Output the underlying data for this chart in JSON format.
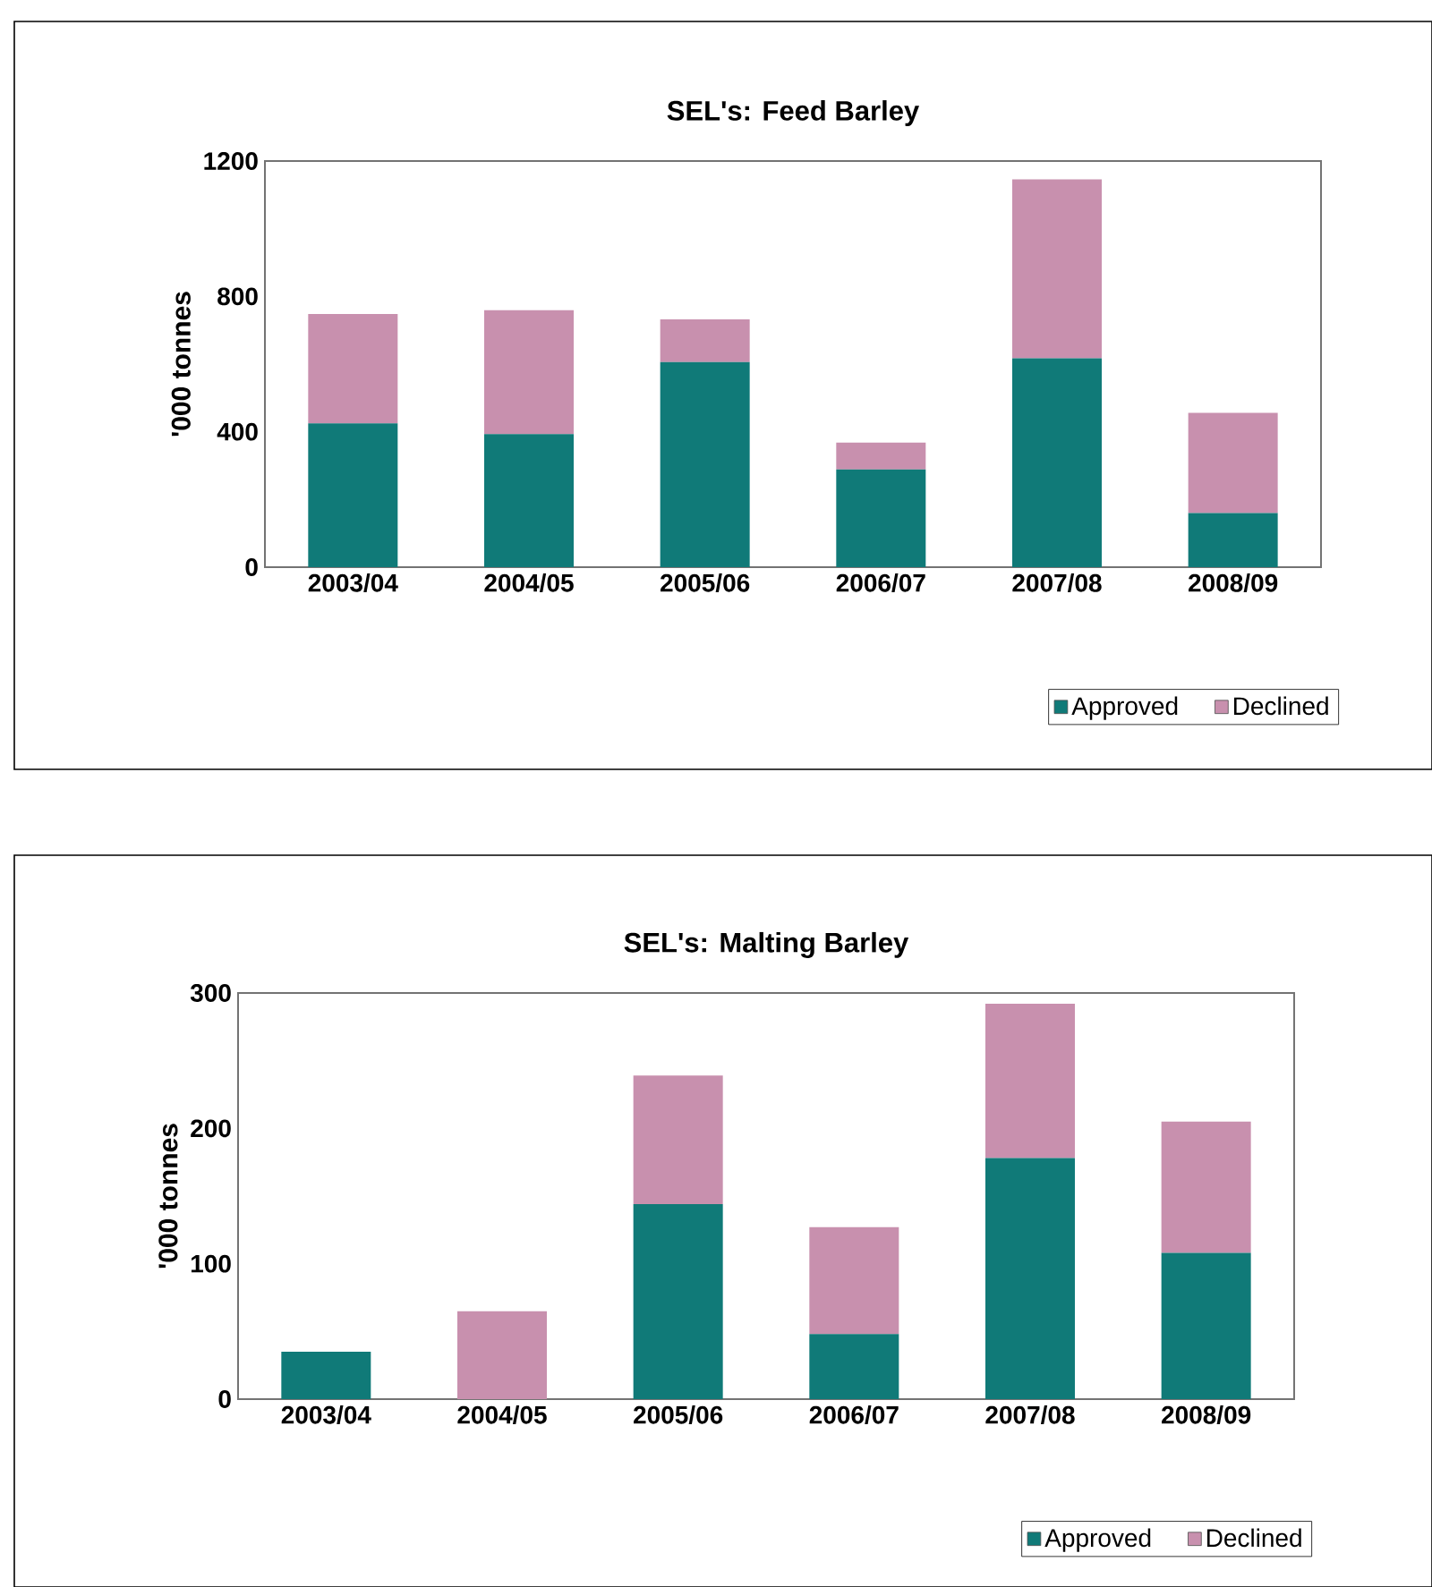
{
  "chart_data": [
    {
      "type": "bar",
      "title": "SEL's: Feed Barley",
      "ylabel": "'000 tonnes",
      "categories": [
        "2003/04",
        "2004/05",
        "2005/06",
        "2006/07",
        "2007/08",
        "2008/09"
      ],
      "stacked": true,
      "ylim": [
        0,
        1200
      ],
      "yticks": [
        0,
        400,
        800,
        1200
      ],
      "legend": "bottom right",
      "series": [
        {
          "name": "Approved",
          "color": "#107a78",
          "values": [
            425,
            393,
            606,
            289,
            617,
            160
          ]
        },
        {
          "name": "Declined",
          "color": "#c890ae",
          "values": [
            323,
            366,
            126,
            79,
            529,
            296
          ]
        }
      ]
    },
    {
      "type": "bar",
      "title": "SEL's: Malting Barley",
      "ylabel": "'000 tonnes",
      "categories": [
        "2003/04",
        "2004/05",
        "2005/06",
        "2006/07",
        "2007/08",
        "2008/09"
      ],
      "stacked": true,
      "ylim": [
        0,
        300
      ],
      "yticks": [
        0,
        100,
        200,
        300
      ],
      "legend": "bottom right",
      "series": [
        {
          "name": "Approved",
          "color": "#107a78",
          "values": [
            35,
            0,
            144,
            48,
            178,
            108
          ]
        },
        {
          "name": "Declined",
          "color": "#c890ae",
          "values": [
            0,
            65,
            95,
            79,
            114,
            97
          ]
        }
      ]
    }
  ]
}
